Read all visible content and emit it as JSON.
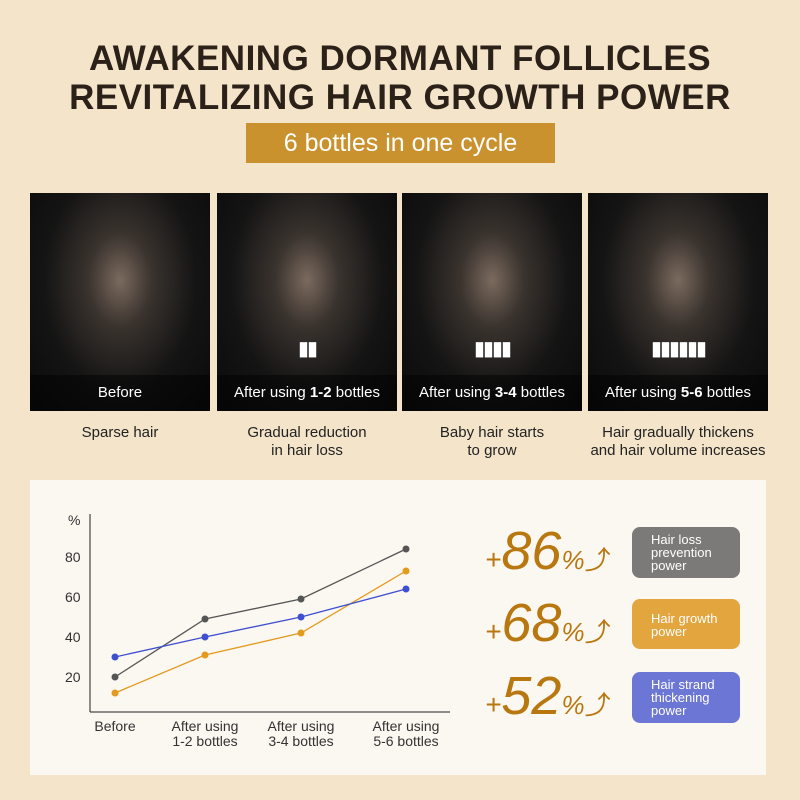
{
  "header": {
    "title_line1": "AWAKENING DORMANT FOLLICLES",
    "title_line2": "REVITALIZING HAIR GROWTH POWER",
    "badge": "6 bottles in one cycle"
  },
  "stages": [
    {
      "caption_pre": "Before",
      "caption_bold": "",
      "caption_post": "",
      "bottles": "",
      "desc1": "Sparse hair",
      "desc2": ""
    },
    {
      "caption_pre": "After using ",
      "caption_bold": "1-2",
      "caption_post": " bottles",
      "bottles": "▮▮",
      "desc1": "Gradual reduction",
      "desc2": "in hair loss"
    },
    {
      "caption_pre": "After using ",
      "caption_bold": "3-4",
      "caption_post": " bottles",
      "bottles": "▮▮▮▮",
      "desc1": "Baby hair starts",
      "desc2": "to grow"
    },
    {
      "caption_pre": "After using ",
      "caption_bold": "5-6",
      "caption_post": " bottles",
      "bottles": "▮▮▮▮▮▮",
      "desc1": "Hair gradually thickens",
      "desc2": "and hair volume increases"
    }
  ],
  "stats": [
    {
      "plus": "+",
      "value": "86",
      "pct": "%",
      "label": "Hair loss prevention power",
      "color": "#7b7a79"
    },
    {
      "plus": "+",
      "value": "68",
      "pct": "%",
      "label": "Hair growth power",
      "color": "#e3a53d"
    },
    {
      "plus": "+",
      "value": "52",
      "pct": "%",
      "label": "Hair strand thickening power",
      "color": "#6c76d4"
    }
  ],
  "chart_data": {
    "type": "line",
    "ylabel": "%",
    "ylim": [
      0,
      90
    ],
    "yticks": [
      20,
      40,
      60,
      80
    ],
    "categories": [
      [
        "Before"
      ],
      [
        "After using",
        "1-2 bottles"
      ],
      [
        "After using",
        "3-4 bottles"
      ],
      [
        "After using",
        "5-6 bottles"
      ]
    ],
    "series": [
      {
        "color": "#555555",
        "values": [
          20,
          49,
          59,
          84
        ]
      },
      {
        "color": "#e39a1d",
        "values": [
          12,
          31,
          42,
          73
        ]
      },
      {
        "color": "#3f4fd0",
        "values": [
          30,
          40,
          50,
          64
        ]
      }
    ],
    "grid": false
  }
}
